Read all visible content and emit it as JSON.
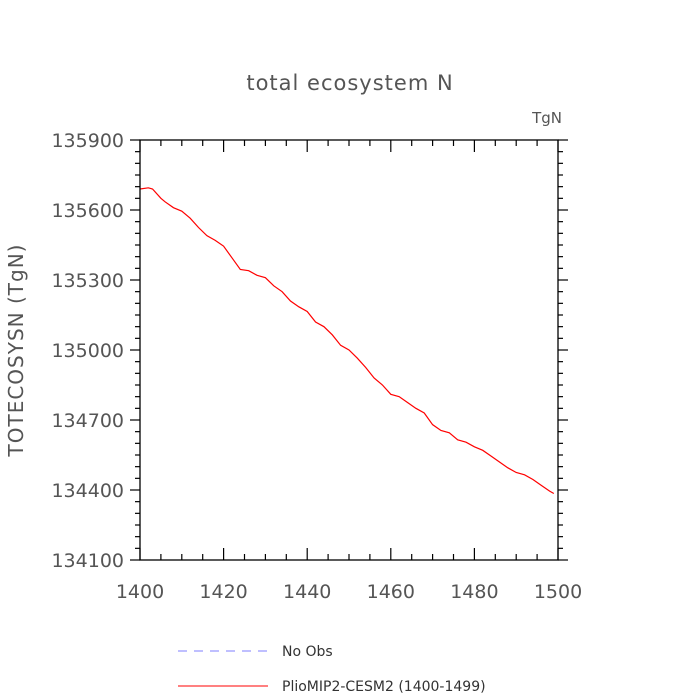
{
  "chart_data": {
    "type": "line",
    "title": "total ecosystem N",
    "units": "TgN",
    "xlabel": "",
    "ylabel": "TOTECOSYSN  (TgN)",
    "xlim": [
      1400,
      1500
    ],
    "ylim": [
      134100,
      135900
    ],
    "x_ticks": [
      1400,
      1420,
      1440,
      1460,
      1480,
      1500
    ],
    "y_ticks": [
      134100,
      134400,
      134700,
      135000,
      135300,
      135600,
      135900
    ],
    "x_minor_step": 5,
    "y_minor_step": 50,
    "series": [
      {
        "name": "No Obs",
        "color": "#7f7fff",
        "style": "dashed",
        "x": [],
        "y": []
      },
      {
        "name": "PlioMIP2-CESM2 (1400-1499)",
        "color": "#ff0000",
        "style": "solid",
        "x": [
          1400,
          1402,
          1403,
          1405,
          1406,
          1408,
          1410,
          1412,
          1414,
          1416,
          1418,
          1420,
          1422,
          1424,
          1426,
          1428,
          1430,
          1432,
          1434,
          1436,
          1438,
          1440,
          1442,
          1444,
          1446,
          1448,
          1450,
          1452,
          1454,
          1456,
          1458,
          1460,
          1462,
          1464,
          1466,
          1468,
          1470,
          1472,
          1474,
          1476,
          1478,
          1480,
          1482,
          1484,
          1486,
          1488,
          1490,
          1492,
          1494,
          1496,
          1498,
          1499
        ],
        "y": [
          135690,
          135695,
          135690,
          135650,
          135635,
          135610,
          135595,
          135565,
          135525,
          135490,
          135470,
          135445,
          135395,
          135345,
          135340,
          135320,
          135310,
          135275,
          135250,
          135210,
          135185,
          135165,
          135120,
          135100,
          135065,
          135020,
          135000,
          134965,
          134925,
          134880,
          134850,
          134810,
          134800,
          134775,
          134750,
          134730,
          134680,
          134655,
          134645,
          134615,
          134605,
          134585,
          134570,
          134545,
          134520,
          134495,
          134475,
          134465,
          134445,
          134420,
          134395,
          134385
        ]
      }
    ]
  }
}
